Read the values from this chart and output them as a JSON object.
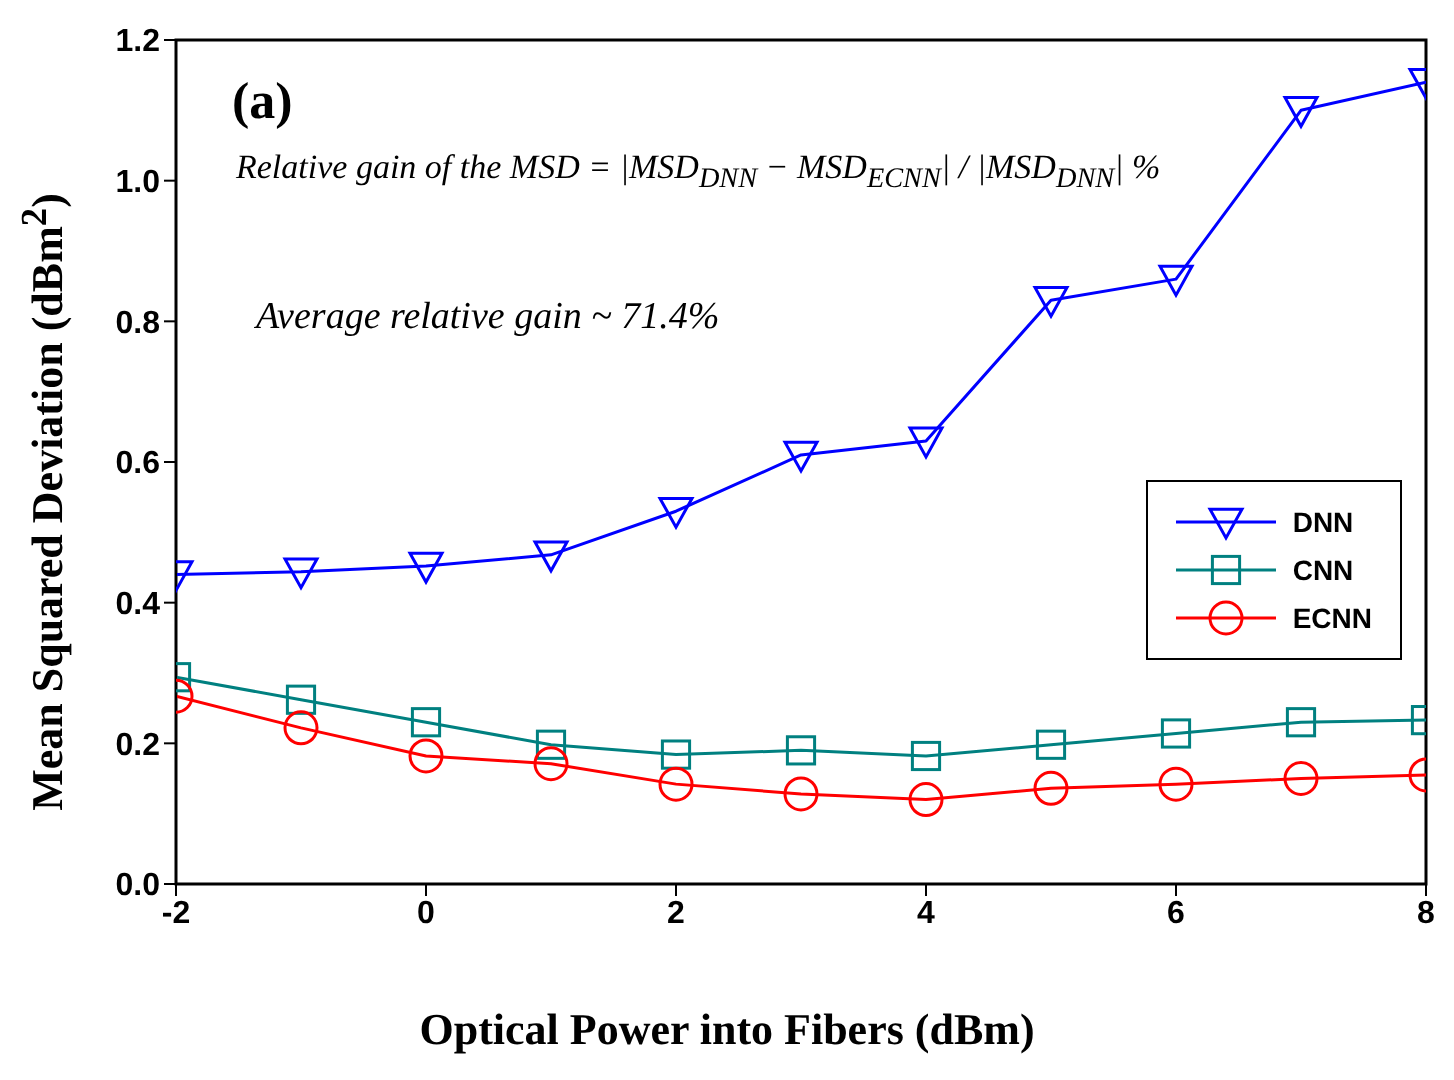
{
  "chart_data": {
    "type": "line",
    "xlabel": "Optical Power into Fibers (dBm)",
    "ylabel": "Mean Squared Deviation (dBm$^{2}$)",
    "x": [
      -2,
      -1,
      0,
      1,
      2,
      3,
      4,
      5,
      6,
      7,
      8
    ],
    "series": [
      {
        "name": "DNN",
        "color": "#0000ff",
        "marker": "triangle",
        "values": [
          0.44,
          0.444,
          0.452,
          0.468,
          0.53,
          0.61,
          0.63,
          0.83,
          0.86,
          1.1,
          1.14
        ]
      },
      {
        "name": "CNN",
        "color": "#008080",
        "marker": "square",
        "values": [
          0.294,
          0.262,
          0.23,
          0.198,
          0.184,
          0.19,
          0.182,
          0.198,
          0.214,
          0.23,
          0.233
        ]
      },
      {
        "name": "ECNN",
        "color": "#ff0000",
        "marker": "circle",
        "values": [
          0.267,
          0.222,
          0.182,
          0.171,
          0.142,
          0.128,
          0.12,
          0.136,
          0.142,
          0.15,
          0.155
        ]
      }
    ],
    "xlim": [
      -2,
      8
    ],
    "xticks": [
      -2,
      0,
      2,
      4,
      6,
      8
    ],
    "ylim": [
      0,
      1.2
    ],
    "yticks": [
      {
        "value": 0,
        "label": "0.0"
      },
      0.2,
      0.4,
      0.6,
      0.8,
      {
        "value": 1,
        "label": "1.0"
      },
      1.2
    ],
    "annotations": [
      "(a)",
      "Relative gain of the MSD = |MSD$_{DNN}$ − MSD$_{ECNN}$| / |MSD$_{DNN}$| %",
      "Average relative gain ~ 71.4%"
    ],
    "legend": "right",
    "grid": false,
    "line_style": "solid"
  }
}
